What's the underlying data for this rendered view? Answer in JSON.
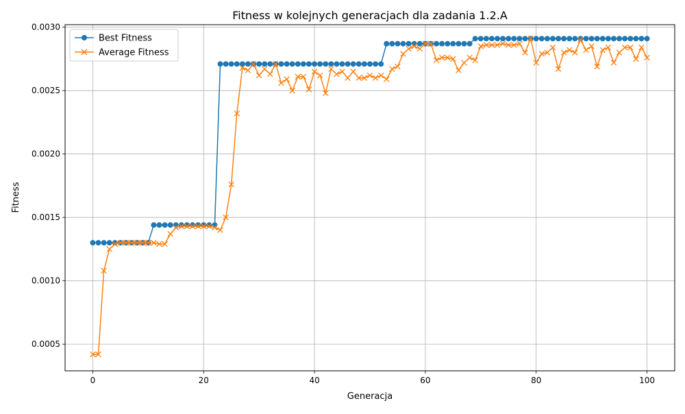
{
  "chart_data": {
    "type": "line",
    "title": "Fitness w kolejnych generacjach dla zadania 1.2.A",
    "xlabel": "Generacja",
    "ylabel": "Fitness",
    "xlim": [
      -5,
      105
    ],
    "ylim": [
      0.00029,
      0.00302
    ],
    "x_ticks": [
      0,
      20,
      40,
      60,
      80,
      100
    ],
    "x_tick_labels": [
      "0",
      "20",
      "40",
      "60",
      "80",
      "100"
    ],
    "y_ticks": [
      0.0005,
      0.001,
      0.0015,
      0.002,
      0.0025,
      0.003
    ],
    "y_tick_labels": [
      "0.0005",
      "0.0010",
      "0.0015",
      "0.0020",
      "0.0025",
      "0.0030"
    ],
    "grid": true,
    "legend_position": "top-left",
    "x": [
      0,
      1,
      2,
      3,
      4,
      5,
      6,
      7,
      8,
      9,
      10,
      11,
      12,
      13,
      14,
      15,
      16,
      17,
      18,
      19,
      20,
      21,
      22,
      23,
      24,
      25,
      26,
      27,
      28,
      29,
      30,
      31,
      32,
      33,
      34,
      35,
      36,
      37,
      38,
      39,
      40,
      41,
      42,
      43,
      44,
      45,
      46,
      47,
      48,
      49,
      50,
      51,
      52,
      53,
      54,
      55,
      56,
      57,
      58,
      59,
      60,
      61,
      62,
      63,
      64,
      65,
      66,
      67,
      68,
      69,
      70,
      71,
      72,
      73,
      74,
      75,
      76,
      77,
      78,
      79,
      80,
      81,
      82,
      83,
      84,
      85,
      86,
      87,
      88,
      89,
      90,
      91,
      92,
      93,
      94,
      95,
      96,
      97,
      98,
      99,
      100
    ],
    "series": [
      {
        "name": "Best Fitness",
        "color": "#1f77b4",
        "marker": "circle",
        "values": [
          0.0013,
          0.0013,
          0.0013,
          0.0013,
          0.0013,
          0.0013,
          0.0013,
          0.0013,
          0.0013,
          0.0013,
          0.0013,
          0.00144,
          0.00144,
          0.00144,
          0.00144,
          0.00144,
          0.00144,
          0.00144,
          0.00144,
          0.00144,
          0.00144,
          0.00144,
          0.00144,
          0.00271,
          0.00271,
          0.00271,
          0.00271,
          0.00271,
          0.00271,
          0.00271,
          0.00271,
          0.00271,
          0.00271,
          0.00271,
          0.00271,
          0.00271,
          0.00271,
          0.00271,
          0.00271,
          0.00271,
          0.00271,
          0.00271,
          0.00271,
          0.00271,
          0.00271,
          0.00271,
          0.00271,
          0.00271,
          0.00271,
          0.00271,
          0.00271,
          0.00271,
          0.00271,
          0.00287,
          0.00287,
          0.00287,
          0.00287,
          0.00287,
          0.00287,
          0.00287,
          0.00287,
          0.00287,
          0.00287,
          0.00287,
          0.00287,
          0.00287,
          0.00287,
          0.00287,
          0.00287,
          0.00291,
          0.00291,
          0.00291,
          0.00291,
          0.00291,
          0.00291,
          0.00291,
          0.00291,
          0.00291,
          0.00291,
          0.00291,
          0.00291,
          0.00291,
          0.00291,
          0.00291,
          0.00291,
          0.00291,
          0.00291,
          0.00291,
          0.00291,
          0.00291,
          0.00291,
          0.00291,
          0.00291,
          0.00291,
          0.00291,
          0.00291,
          0.00291,
          0.00291,
          0.00291,
          0.00291,
          0.00291
        ]
      },
      {
        "name": "Average Fitness",
        "color": "#ff7f0e",
        "marker": "x",
        "values": [
          0.00042,
          0.00042,
          0.00108,
          0.00125,
          0.00129,
          0.0013,
          0.0013,
          0.0013,
          0.0013,
          0.0013,
          0.0013,
          0.0013,
          0.00129,
          0.00129,
          0.00137,
          0.00142,
          0.00143,
          0.00143,
          0.00143,
          0.00143,
          0.00143,
          0.00143,
          0.00142,
          0.0014,
          0.0015,
          0.00176,
          0.00232,
          0.00268,
          0.00266,
          0.00271,
          0.00262,
          0.00267,
          0.00263,
          0.00271,
          0.00256,
          0.00259,
          0.0025,
          0.00261,
          0.00261,
          0.00251,
          0.00265,
          0.00262,
          0.00248,
          0.00267,
          0.00263,
          0.00265,
          0.0026,
          0.00265,
          0.0026,
          0.0026,
          0.00262,
          0.0026,
          0.00262,
          0.00259,
          0.00267,
          0.00269,
          0.00279,
          0.00283,
          0.00285,
          0.00283,
          0.00287,
          0.00287,
          0.00274,
          0.00276,
          0.00276,
          0.00275,
          0.00266,
          0.00272,
          0.00276,
          0.00274,
          0.00285,
          0.00286,
          0.00286,
          0.00286,
          0.00287,
          0.00286,
          0.00286,
          0.00287,
          0.0028,
          0.00291,
          0.00272,
          0.00279,
          0.0028,
          0.00284,
          0.00267,
          0.0028,
          0.00282,
          0.0028,
          0.0029,
          0.00282,
          0.00285,
          0.00269,
          0.00282,
          0.00284,
          0.00272,
          0.0028,
          0.00284,
          0.00284,
          0.00275,
          0.00284,
          0.00276
        ]
      }
    ]
  }
}
